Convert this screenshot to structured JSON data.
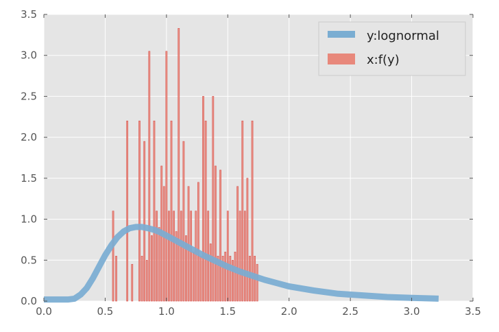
{
  "chart_data": {
    "type": "histogram+line",
    "xlim": [
      0.0,
      3.5
    ],
    "ylim": [
      0.0,
      3.5
    ],
    "x_ticks": [
      "0.0",
      "0.5",
      "1.0",
      "1.5",
      "2.0",
      "2.5",
      "3.0",
      "3.5"
    ],
    "y_ticks": [
      "0.0",
      "0.5",
      "1.0",
      "1.5",
      "2.0",
      "2.5",
      "3.0",
      "3.5"
    ],
    "grid": true,
    "legend_position": "top-right",
    "colors": {
      "background": "#e5e5e5",
      "grid": "#ffffff",
      "line": "#7aadd2",
      "bars": "#e8887b",
      "bars_edge": "#d9534f"
    },
    "series": [
      {
        "name": "y:lognormal",
        "kind": "line",
        "x": [
          0.0,
          0.1,
          0.2,
          0.25,
          0.3,
          0.35,
          0.4,
          0.45,
          0.5,
          0.55,
          0.6,
          0.65,
          0.7,
          0.75,
          0.8,
          0.85,
          0.9,
          0.95,
          1.0,
          1.1,
          1.2,
          1.3,
          1.4,
          1.5,
          1.6,
          1.7,
          1.8,
          1.9,
          2.0,
          2.2,
          2.4,
          2.6,
          2.8,
          3.0,
          3.22
        ],
        "y": [
          0.02,
          0.02,
          0.02,
          0.03,
          0.08,
          0.16,
          0.28,
          0.42,
          0.56,
          0.68,
          0.78,
          0.85,
          0.89,
          0.905,
          0.905,
          0.89,
          0.87,
          0.84,
          0.8,
          0.72,
          0.64,
          0.56,
          0.49,
          0.42,
          0.36,
          0.31,
          0.26,
          0.22,
          0.18,
          0.13,
          0.09,
          0.07,
          0.05,
          0.04,
          0.03
        ]
      },
      {
        "name": "x:f(y)",
        "kind": "bars",
        "x": [
          0.565,
          0.59,
          0.68,
          0.72,
          0.78,
          0.8,
          0.82,
          0.84,
          0.86,
          0.88,
          0.9,
          0.92,
          0.94,
          0.96,
          0.98,
          1.0,
          1.02,
          1.04,
          1.06,
          1.08,
          1.1,
          1.12,
          1.14,
          1.16,
          1.18,
          1.2,
          1.22,
          1.24,
          1.26,
          1.28,
          1.3,
          1.32,
          1.34,
          1.36,
          1.38,
          1.4,
          1.42,
          1.44,
          1.46,
          1.48,
          1.5,
          1.52,
          1.54,
          1.56,
          1.58,
          1.6,
          1.62,
          1.64,
          1.66,
          1.68,
          1.7,
          1.72,
          1.74
        ],
        "y": [
          1.1,
          0.55,
          2.2,
          0.45,
          2.2,
          0.55,
          1.95,
          0.5,
          3.05,
          0.8,
          2.2,
          1.1,
          0.9,
          1.65,
          1.4,
          3.05,
          1.1,
          2.2,
          1.1,
          0.85,
          3.33,
          1.1,
          1.95,
          0.8,
          1.4,
          1.1,
          0.6,
          1.1,
          1.45,
          0.55,
          2.5,
          2.2,
          1.1,
          0.7,
          2.5,
          1.65,
          0.55,
          1.6,
          0.55,
          0.6,
          1.1,
          0.55,
          0.5,
          0.6,
          1.4,
          1.1,
          2.2,
          1.1,
          1.5,
          0.55,
          2.2,
          0.55,
          0.45
        ]
      }
    ]
  }
}
